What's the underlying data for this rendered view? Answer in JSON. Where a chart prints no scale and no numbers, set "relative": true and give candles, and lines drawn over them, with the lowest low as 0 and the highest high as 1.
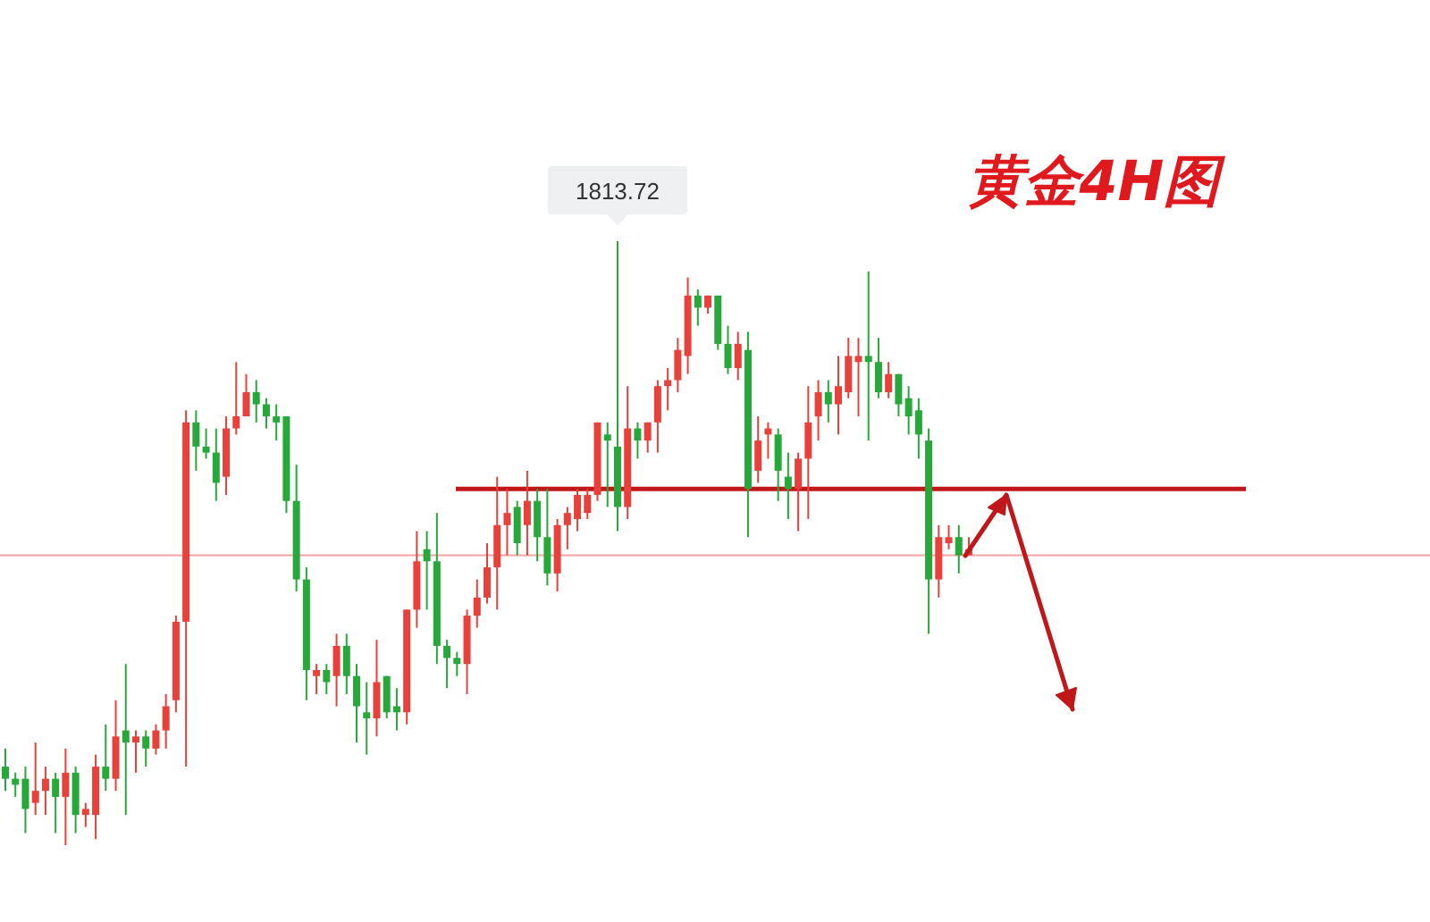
{
  "chart_data": {
    "type": "candlestick",
    "title": "黄金4H图",
    "relative": true,
    "categories": [
      null,
      null,
      null,
      null,
      null,
      null,
      null,
      null,
      null,
      null,
      null,
      null,
      null,
      null,
      null,
      null,
      null,
      null,
      null,
      null,
      null,
      null,
      null,
      null,
      null,
      null,
      null,
      null,
      null,
      null,
      null,
      null,
      null,
      null,
      null,
      null,
      null,
      null,
      null,
      null,
      null,
      null,
      null,
      null,
      null,
      null,
      null,
      null,
      null,
      null,
      null,
      null,
      null,
      null,
      null,
      null,
      null,
      null,
      null,
      null,
      null,
      null,
      null,
      null,
      null,
      null,
      null,
      null,
      null,
      null,
      null,
      null,
      null,
      null,
      null,
      null,
      null,
      null,
      null,
      null,
      null,
      null,
      null,
      null,
      null,
      null,
      null,
      null,
      null,
      null,
      null,
      null,
      null,
      null,
      null,
      null,
      null
    ],
    "ohlc": [
      [
        0.13,
        0.16,
        0.09,
        0.11
      ],
      [
        0.11,
        0.12,
        0.08,
        0.1
      ],
      [
        0.11,
        0.13,
        0.02,
        0.06
      ],
      [
        0.07,
        0.17,
        0.05,
        0.09
      ],
      [
        0.09,
        0.13,
        0.05,
        0.11
      ],
      [
        0.11,
        0.12,
        0.02,
        0.08
      ],
      [
        0.08,
        0.16,
        0,
        0.12
      ],
      [
        0.12,
        0.13,
        0.02,
        0.05
      ],
      [
        0.05,
        0.07,
        0.03,
        0.06
      ],
      [
        0.05,
        0.15,
        0.01,
        0.13
      ],
      [
        0.13,
        0.2,
        0.09,
        0.11
      ],
      [
        0.11,
        0.24,
        0.09,
        0.18
      ],
      [
        0.19,
        0.3,
        0.05,
        0.17
      ],
      [
        0.17,
        0.19,
        0.12,
        0.18
      ],
      [
        0.18,
        0.19,
        0.13,
        0.16
      ],
      [
        0.16,
        0.2,
        0.15,
        0.19
      ],
      [
        0.19,
        0.25,
        0.16,
        0.23
      ],
      [
        0.24,
        0.38,
        0.22,
        0.37
      ],
      [
        0.37,
        0.72,
        0.13,
        0.7
      ],
      [
        0.7,
        0.72,
        0.62,
        0.66
      ],
      [
        0.66,
        0.69,
        0.64,
        0.65
      ],
      [
        0.65,
        0.69,
        0.57,
        0.6
      ],
      [
        0.61,
        0.71,
        0.58,
        0.69
      ],
      [
        0.69,
        0.8,
        0.68,
        0.71
      ],
      [
        0.71,
        0.78,
        0.71,
        0.75
      ],
      [
        0.75,
        0.77,
        0.7,
        0.73
      ],
      [
        0.73,
        0.74,
        0.69,
        0.71
      ],
      [
        0.71,
        0.73,
        0.67,
        0.7
      ],
      [
        0.71,
        0.71,
        0.55,
        0.57
      ],
      [
        0.57,
        0.63,
        0.42,
        0.44
      ],
      [
        0.44,
        0.46,
        0.24,
        0.29
      ],
      [
        0.28,
        0.3,
        0.25,
        0.29
      ],
      [
        0.29,
        0.3,
        0.25,
        0.27
      ],
      [
        0.28,
        0.35,
        0.23,
        0.33
      ],
      [
        0.33,
        0.35,
        0.25,
        0.28
      ],
      [
        0.28,
        0.3,
        0.17,
        0.23
      ],
      [
        0.22,
        0.27,
        0.15,
        0.21
      ],
      [
        0.21,
        0.34,
        0.18,
        0.27
      ],
      [
        0.28,
        0.28,
        0.21,
        0.22
      ],
      [
        0.23,
        0.26,
        0.19,
        0.22
      ],
      [
        0.22,
        0.39,
        0.2,
        0.39
      ],
      [
        0.39,
        0.52,
        0.36,
        0.47
      ],
      [
        0.49,
        0.52,
        0.39,
        0.47
      ],
      [
        0.47,
        0.55,
        0.3,
        0.33
      ],
      [
        0.33,
        0.34,
        0.26,
        0.31
      ],
      [
        0.31,
        0.32,
        0.28,
        0.3
      ],
      [
        0.3,
        0.39,
        0.25,
        0.38
      ],
      [
        0.38,
        0.44,
        0.36,
        0.41
      ],
      [
        0.41,
        0.5,
        0.4,
        0.46
      ],
      [
        0.46,
        0.61,
        0.39,
        0.53
      ],
      [
        0.53,
        0.59,
        0.48,
        0.55
      ],
      [
        0.56,
        0.57,
        0.48,
        0.5
      ],
      [
        0.53,
        0.62,
        0.48,
        0.57
      ],
      [
        0.57,
        0.59,
        0.47,
        0.51
      ],
      [
        0.51,
        0.59,
        0.43,
        0.45
      ],
      [
        0.45,
        0.54,
        0.42,
        0.53
      ],
      [
        0.53,
        0.56,
        0.49,
        0.55
      ],
      [
        0.54,
        0.59,
        0.52,
        0.58
      ],
      [
        0.55,
        0.59,
        0.54,
        0.58
      ],
      [
        0.58,
        0.7,
        0.57,
        0.7
      ],
      [
        0.68,
        0.7,
        0.56,
        0.67
      ],
      [
        0.66,
        1,
        0.52,
        0.56
      ],
      [
        0.56,
        0.76,
        0.54,
        0.69
      ],
      [
        0.69,
        0.7,
        0.64,
        0.67
      ],
      [
        0.67,
        0.7,
        0.65,
        0.7
      ],
      [
        0.7,
        0.77,
        0.65,
        0.76
      ],
      [
        0.76,
        0.79,
        0.72,
        0.77
      ],
      [
        0.77,
        0.84,
        0.75,
        0.82
      ],
      [
        0.81,
        0.94,
        0.78,
        0.91
      ],
      [
        0.91,
        0.92,
        0.86,
        0.89
      ],
      [
        0.89,
        0.91,
        0.88,
        0.91
      ],
      [
        0.91,
        0.91,
        0.82,
        0.83
      ],
      [
        0.83,
        0.86,
        0.78,
        0.79
      ],
      [
        0.79,
        0.85,
        0.77,
        0.83
      ],
      [
        0.82,
        0.85,
        0.51,
        0.59
      ],
      [
        0.62,
        0.71,
        0.6,
        0.67
      ],
      [
        0.68,
        0.7,
        0.64,
        0.69
      ],
      [
        0.68,
        0.69,
        0.57,
        0.62
      ],
      [
        0.61,
        0.65,
        0.54,
        0.59
      ],
      [
        0.59,
        0.65,
        0.52,
        0.64
      ],
      [
        0.64,
        0.76,
        0.54,
        0.7
      ],
      [
        0.71,
        0.77,
        0.67,
        0.75
      ],
      [
        0.75,
        0.77,
        0.7,
        0.73
      ],
      [
        0.73,
        0.81,
        0.68,
        0.76
      ],
      [
        0.75,
        0.84,
        0.74,
        0.81
      ],
      [
        0.8,
        0.84,
        0.71,
        0.81
      ],
      [
        0.81,
        0.95,
        0.67,
        0.8
      ],
      [
        0.8,
        0.84,
        0.74,
        0.75
      ],
      [
        0.75,
        0.8,
        0.74,
        0.78
      ],
      [
        0.78,
        0.78,
        0.71,
        0.73
      ],
      [
        0.74,
        0.76,
        0.68,
        0.71
      ],
      [
        0.72,
        0.74,
        0.64,
        0.68
      ],
      [
        0.67,
        0.69,
        0.35,
        0.44
      ],
      [
        0.44,
        0.53,
        0.41,
        0.51
      ],
      [
        0.5,
        0.53,
        0.49,
        0.51
      ],
      [
        0.51,
        0.53,
        0.45,
        0.48
      ],
      [
        0.48,
        0.51,
        0.48,
        0.49
      ]
    ],
    "ref_lines": [
      {
        "axis": "y",
        "value": 0.59,
        "color": "#c0181a"
      },
      {
        "axis": "y",
        "value": 0.48,
        "color": "#f4a3a3"
      }
    ],
    "annotations": [
      {
        "text": "1813.72",
        "y": 1
      }
    ]
  }
}
